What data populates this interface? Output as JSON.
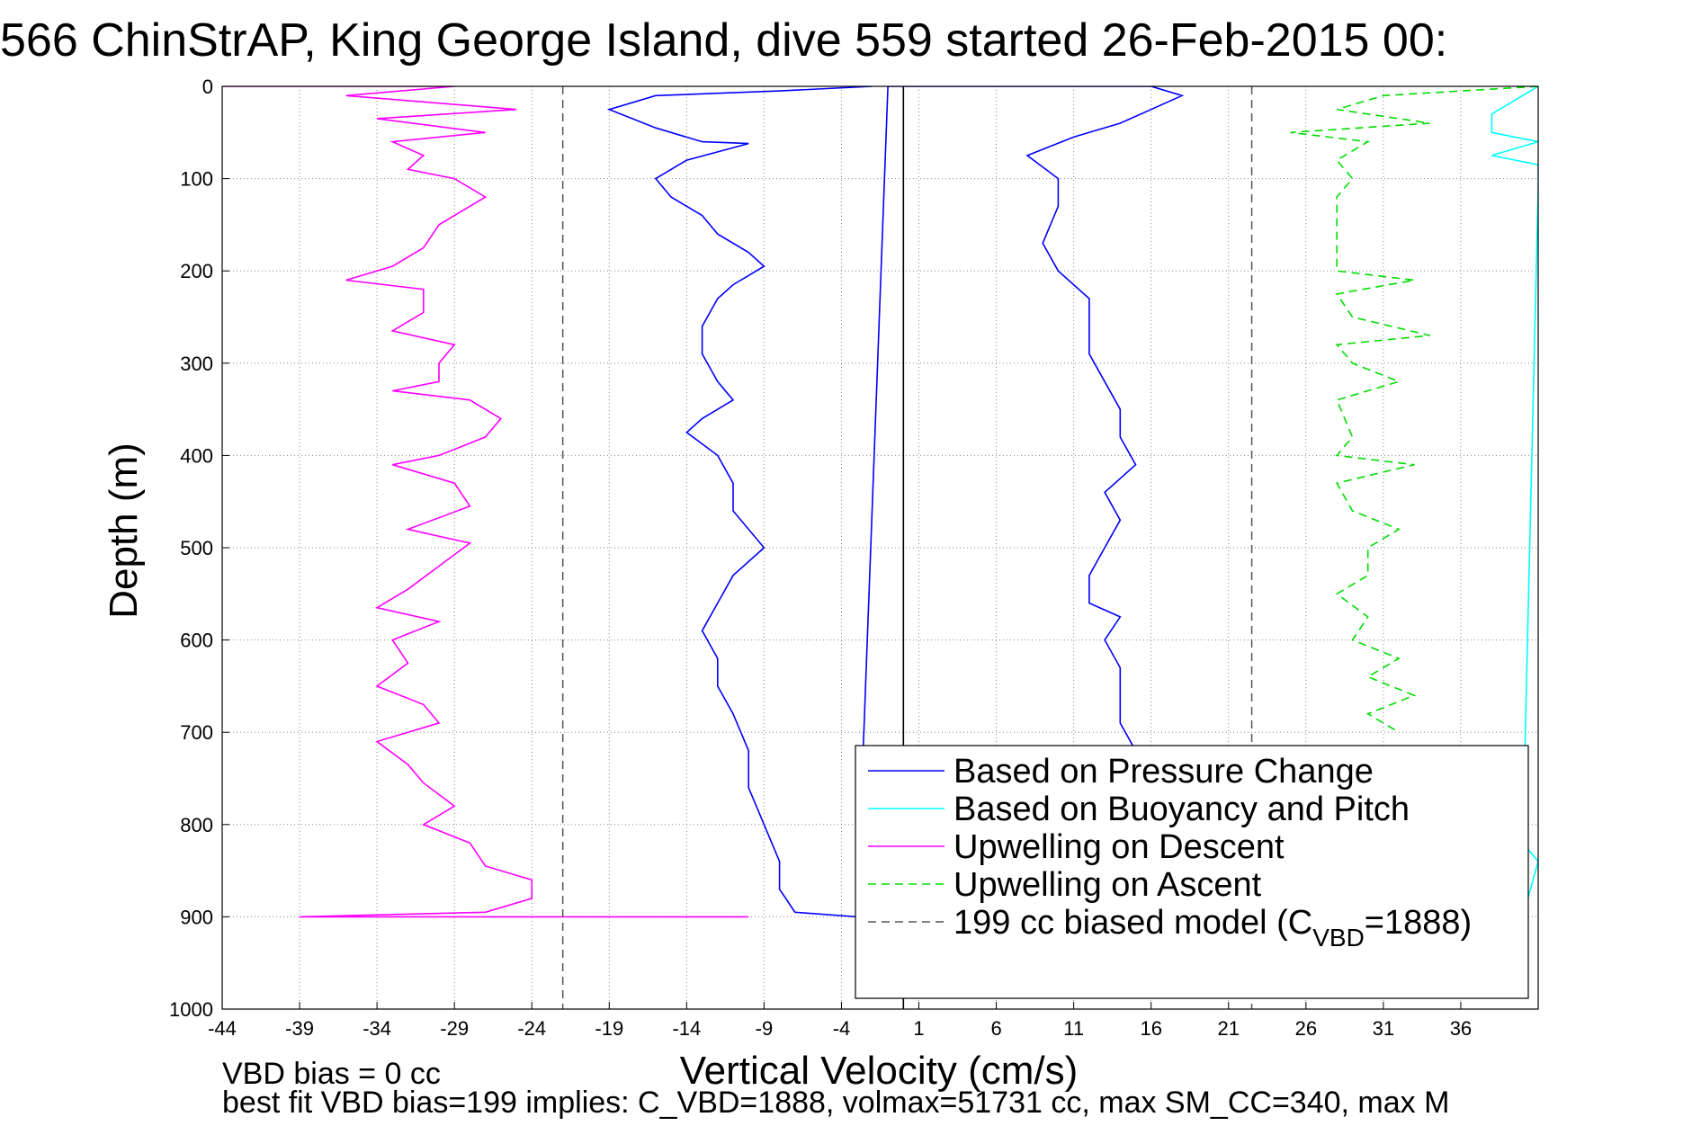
{
  "chart_data": {
    "type": "line",
    "title": "566 ChinStrAP, King George Island, dive 559 started 26-Feb-2015 00:",
    "xlabel": "Vertical Velocity (cm/s)",
    "ylabel": "Depth (m)",
    "xlim": [
      -44,
      41
    ],
    "ylim": [
      1000,
      0
    ],
    "y_reversed": true,
    "grid": true,
    "grid_style": "dotted",
    "legend_position": "bottom-right",
    "x_ticks": [
      "-44",
      "-39",
      "-34",
      "-29",
      "-24",
      "-19",
      "-14",
      "-9",
      "-4",
      "1",
      "6",
      "11",
      "16",
      "21",
      "26",
      "31",
      "36"
    ],
    "y_ticks": [
      "0",
      "100",
      "200",
      "300",
      "400",
      "500",
      "600",
      "700",
      "800",
      "900",
      "1000"
    ],
    "series": [
      {
        "name": "Based on Pressure Change",
        "color": "#0000ff",
        "style": "solid",
        "points": [
          [
            -2,
            0
          ],
          [
            -8,
            5
          ],
          [
            -16,
            10
          ],
          [
            -19,
            25
          ],
          [
            -16,
            45
          ],
          [
            -13,
            60
          ],
          [
            -10,
            62
          ],
          [
            -14,
            80
          ],
          [
            -16,
            100
          ],
          [
            -15,
            120
          ],
          [
            -13,
            140
          ],
          [
            -12,
            160
          ],
          [
            -10,
            180
          ],
          [
            -9,
            195
          ],
          [
            -11,
            215
          ],
          [
            -12,
            230
          ],
          [
            -13,
            260
          ],
          [
            -13,
            290
          ],
          [
            -12,
            320
          ],
          [
            -11,
            340
          ],
          [
            -13,
            360
          ],
          [
            -14,
            375
          ],
          [
            -12,
            400
          ],
          [
            -11,
            430
          ],
          [
            -11,
            460
          ],
          [
            -10,
            480
          ],
          [
            -9,
            500
          ],
          [
            -11,
            530
          ],
          [
            -12,
            560
          ],
          [
            -13,
            590
          ],
          [
            -12,
            620
          ],
          [
            -12,
            650
          ],
          [
            -11,
            680
          ],
          [
            -10,
            720
          ],
          [
            -10,
            760
          ],
          [
            -9,
            800
          ],
          [
            -8,
            840
          ],
          [
            -8,
            870
          ],
          [
            -7,
            895
          ],
          [
            -3,
            900
          ],
          [
            -1,
            0
          ],
          [
            16,
            0
          ],
          [
            18,
            10
          ],
          [
            16,
            25
          ],
          [
            14,
            40
          ],
          [
            11,
            55
          ],
          [
            8,
            75
          ],
          [
            10,
            100
          ],
          [
            10,
            130
          ],
          [
            9,
            170
          ],
          [
            10,
            200
          ],
          [
            12,
            230
          ],
          [
            12,
            260
          ],
          [
            12,
            290
          ],
          [
            13,
            320
          ],
          [
            14,
            350
          ],
          [
            14,
            380
          ],
          [
            15,
            410
          ],
          [
            13,
            440
          ],
          [
            14,
            470
          ],
          [
            13,
            500
          ],
          [
            12,
            530
          ],
          [
            12,
            560
          ],
          [
            14,
            575
          ],
          [
            13,
            600
          ],
          [
            14,
            630
          ],
          [
            14,
            660
          ],
          [
            14,
            690
          ],
          [
            15,
            720
          ]
        ]
      },
      {
        "name": "Based on Buoyancy and Pitch",
        "color": "#00ffff",
        "style": "solid",
        "points": [
          [
            41,
            0
          ],
          [
            38,
            30
          ],
          [
            38,
            50
          ],
          [
            41,
            60
          ],
          [
            38,
            75
          ],
          [
            41,
            85
          ],
          [
            41,
            110
          ],
          [
            40,
            820
          ],
          [
            41,
            840
          ],
          [
            40,
            900
          ]
        ]
      },
      {
        "name": "Upwelling on Descent",
        "color": "#ff00ff",
        "style": "solid",
        "points": [
          [
            -44,
            0
          ],
          [
            -29,
            0
          ],
          [
            -36,
            10
          ],
          [
            -25,
            25
          ],
          [
            -34,
            35
          ],
          [
            -27,
            50
          ],
          [
            -33,
            60
          ],
          [
            -31,
            75
          ],
          [
            -32,
            90
          ],
          [
            -29,
            100
          ],
          [
            -27,
            120
          ],
          [
            -30,
            150
          ],
          [
            -31,
            175
          ],
          [
            -33,
            195
          ],
          [
            -36,
            210
          ],
          [
            -31,
            220
          ],
          [
            -31,
            245
          ],
          [
            -33,
            265
          ],
          [
            -29,
            280
          ],
          [
            -30,
            300
          ],
          [
            -30,
            320
          ],
          [
            -33,
            330
          ],
          [
            -28,
            340
          ],
          [
            -26,
            360
          ],
          [
            -27,
            380
          ],
          [
            -30,
            400
          ],
          [
            -33,
            410
          ],
          [
            -29,
            430
          ],
          [
            -28,
            455
          ],
          [
            -32,
            480
          ],
          [
            -28,
            495
          ],
          [
            -30,
            520
          ],
          [
            -32,
            545
          ],
          [
            -34,
            565
          ],
          [
            -30,
            580
          ],
          [
            -33,
            600
          ],
          [
            -32,
            625
          ],
          [
            -34,
            650
          ],
          [
            -31,
            670
          ],
          [
            -30,
            690
          ],
          [
            -34,
            710
          ],
          [
            -32,
            735
          ],
          [
            -31,
            755
          ],
          [
            -29,
            780
          ],
          [
            -31,
            800
          ],
          [
            -28,
            820
          ],
          [
            -27,
            845
          ],
          [
            -24,
            860
          ],
          [
            -24,
            880
          ],
          [
            -27,
            895
          ],
          [
            -39,
            900
          ],
          [
            -10,
            900
          ]
        ]
      },
      {
        "name": "Upwelling on Ascent",
        "color": "#00dd00",
        "style": "dashed",
        "points": [
          [
            41,
            0
          ],
          [
            31,
            10
          ],
          [
            28,
            25
          ],
          [
            34,
            40
          ],
          [
            25,
            50
          ],
          [
            30,
            60
          ],
          [
            28,
            80
          ],
          [
            29,
            100
          ],
          [
            28,
            120
          ],
          [
            28,
            150
          ],
          [
            28,
            180
          ],
          [
            28,
            200
          ],
          [
            33,
            210
          ],
          [
            28,
            225
          ],
          [
            29,
            250
          ],
          [
            34,
            270
          ],
          [
            28,
            280
          ],
          [
            29,
            300
          ],
          [
            32,
            320
          ],
          [
            28,
            340
          ],
          [
            29,
            380
          ],
          [
            28,
            400
          ],
          [
            33,
            410
          ],
          [
            28,
            430
          ],
          [
            29,
            460
          ],
          [
            32,
            480
          ],
          [
            30,
            500
          ],
          [
            30,
            530
          ],
          [
            28,
            550
          ],
          [
            30,
            575
          ],
          [
            29,
            600
          ],
          [
            32,
            620
          ],
          [
            30,
            640
          ],
          [
            33,
            660
          ],
          [
            30,
            680
          ],
          [
            32,
            700
          ]
        ]
      },
      {
        "name": "199 cc biased model (C",
        "name_subscript": "VBD",
        "name_suffix": "=1888)",
        "color": "#555555",
        "style": "dashed",
        "points": [
          [
            -22,
            0
          ],
          [
            -22,
            1000
          ],
          [
            22.5,
            0
          ],
          [
            22.5,
            1000
          ]
        ]
      },
      {
        "name": "",
        "color": "#000000",
        "style": "solid",
        "points": [
          [
            0,
            0
          ],
          [
            0,
            1000
          ]
        ]
      }
    ]
  },
  "footnotes": {
    "line1": "VBD bias = 0 cc",
    "line2": "best fit VBD bias=199 implies: C_VBD=1888, volmax=51731 cc, max SM_CC=340, max M"
  }
}
